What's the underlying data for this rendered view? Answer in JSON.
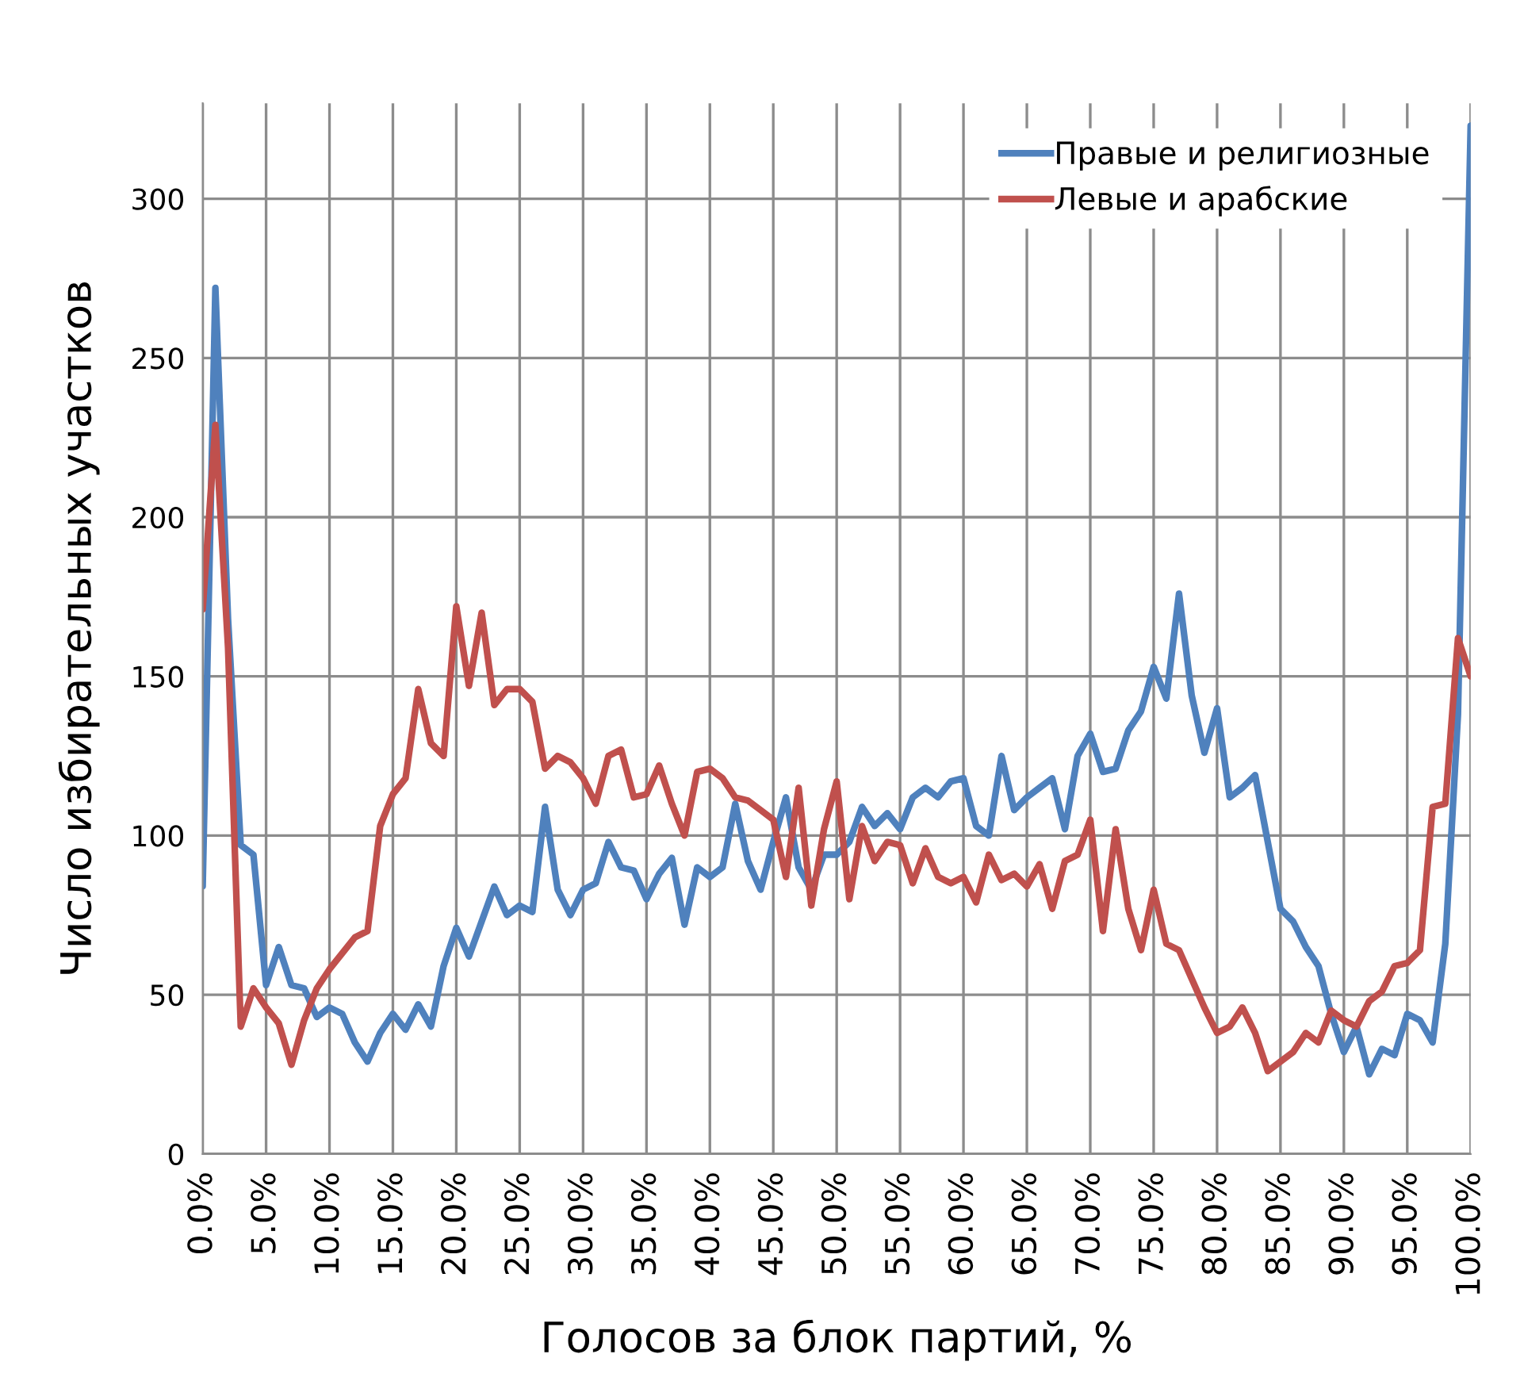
{
  "chart_data": {
    "type": "line",
    "xlabel": "Голосов за блок партий, %",
    "ylabel": "Число избирательных участков",
    "x": [
      0,
      1,
      2,
      3,
      4,
      5,
      6,
      7,
      8,
      9,
      10,
      11,
      12,
      13,
      14,
      15,
      16,
      17,
      18,
      19,
      20,
      21,
      22,
      23,
      24,
      25,
      26,
      27,
      28,
      29,
      30,
      31,
      32,
      33,
      34,
      35,
      36,
      37,
      38,
      39,
      40,
      41,
      42,
      43,
      44,
      45,
      46,
      47,
      48,
      49,
      50,
      51,
      52,
      53,
      54,
      55,
      56,
      57,
      58,
      59,
      60,
      61,
      62,
      63,
      64,
      65,
      66,
      67,
      68,
      69,
      70,
      71,
      72,
      73,
      74,
      75,
      76,
      77,
      78,
      79,
      80,
      81,
      82,
      83,
      84,
      85,
      86,
      87,
      88,
      89,
      90,
      91,
      92,
      93,
      94,
      95,
      96,
      97,
      98,
      99,
      100
    ],
    "series": [
      {
        "name": "Правые и религиозные",
        "color": "#4f81bd",
        "values": [
          84,
          272,
          168,
          97,
          94,
          53,
          65,
          53,
          52,
          43,
          46,
          44,
          35,
          29,
          38,
          44,
          39,
          47,
          40,
          59,
          71,
          62,
          73,
          84,
          75,
          78,
          76,
          109,
          83,
          75,
          83,
          85,
          98,
          90,
          89,
          80,
          88,
          93,
          72,
          90,
          87,
          90,
          110,
          92,
          83,
          98,
          112,
          90,
          83,
          94,
          94,
          98,
          109,
          103,
          107,
          102,
          112,
          115,
          112,
          117,
          118,
          103,
          100,
          125,
          108,
          112,
          115,
          118,
          102,
          125,
          132,
          120,
          121,
          133,
          139,
          153,
          143,
          176,
          144,
          126,
          140,
          112,
          115,
          119,
          98,
          77,
          73,
          65,
          59,
          44,
          32,
          40,
          25,
          33,
          31,
          44,
          42,
          35,
          66,
          138,
          323
        ]
      },
      {
        "name": "Левые и арабские",
        "color": "#c0504d",
        "values": [
          171,
          229,
          159,
          40,
          52,
          46,
          41,
          28,
          42,
          52,
          58,
          63,
          68,
          70,
          103,
          113,
          118,
          146,
          129,
          125,
          172,
          147,
          170,
          141,
          146,
          146,
          142,
          121,
          125,
          123,
          118,
          110,
          125,
          127,
          112,
          113,
          122,
          110,
          100,
          120,
          121,
          118,
          112,
          111,
          108,
          105,
          87,
          115,
          78,
          102,
          117,
          80,
          103,
          92,
          98,
          97,
          85,
          96,
          87,
          85,
          87,
          79,
          94,
          86,
          88,
          84,
          91,
          77,
          92,
          94,
          105,
          70,
          102,
          77,
          64,
          83,
          66,
          64,
          55,
          46,
          38,
          40,
          46,
          38,
          26,
          29,
          32,
          38,
          35,
          45,
          42,
          40,
          48,
          51,
          59,
          60,
          64,
          109,
          110,
          162,
          150
        ]
      }
    ],
    "xlim": [
      0,
      100
    ],
    "xticks": [
      {
        "value": 0,
        "label": "0.0%"
      },
      {
        "value": 5,
        "label": "5.0%"
      },
      {
        "value": 10,
        "label": "10.0%"
      },
      {
        "value": 15,
        "label": "15.0%"
      },
      {
        "value": 20,
        "label": "20.0%"
      },
      {
        "value": 25,
        "label": "25.0%"
      },
      {
        "value": 30,
        "label": "30.0%"
      },
      {
        "value": 35,
        "label": "35.0%"
      },
      {
        "value": 40,
        "label": "40.0%"
      },
      {
        "value": 45,
        "label": "45.0%"
      },
      {
        "value": 50,
        "label": "50.0%"
      },
      {
        "value": 55,
        "label": "55.0%"
      },
      {
        "value": 60,
        "label": "60.0%"
      },
      {
        "value": 65,
        "label": "65.0%"
      },
      {
        "value": 70,
        "label": "70.0%"
      },
      {
        "value": 75,
        "label": "75.0%"
      },
      {
        "value": 80,
        "label": "80.0%"
      },
      {
        "value": 85,
        "label": "85.0%"
      },
      {
        "value": 90,
        "label": "90.0%"
      },
      {
        "value": 95,
        "label": "95.0%"
      },
      {
        "value": 100,
        "label": "100.0%"
      }
    ],
    "ylim": [
      0,
      330
    ],
    "yticks": [
      0,
      50,
      100,
      150,
      200,
      250,
      300
    ],
    "grid": true,
    "legend": "top right",
    "line_style": "solid",
    "marker": "none"
  }
}
